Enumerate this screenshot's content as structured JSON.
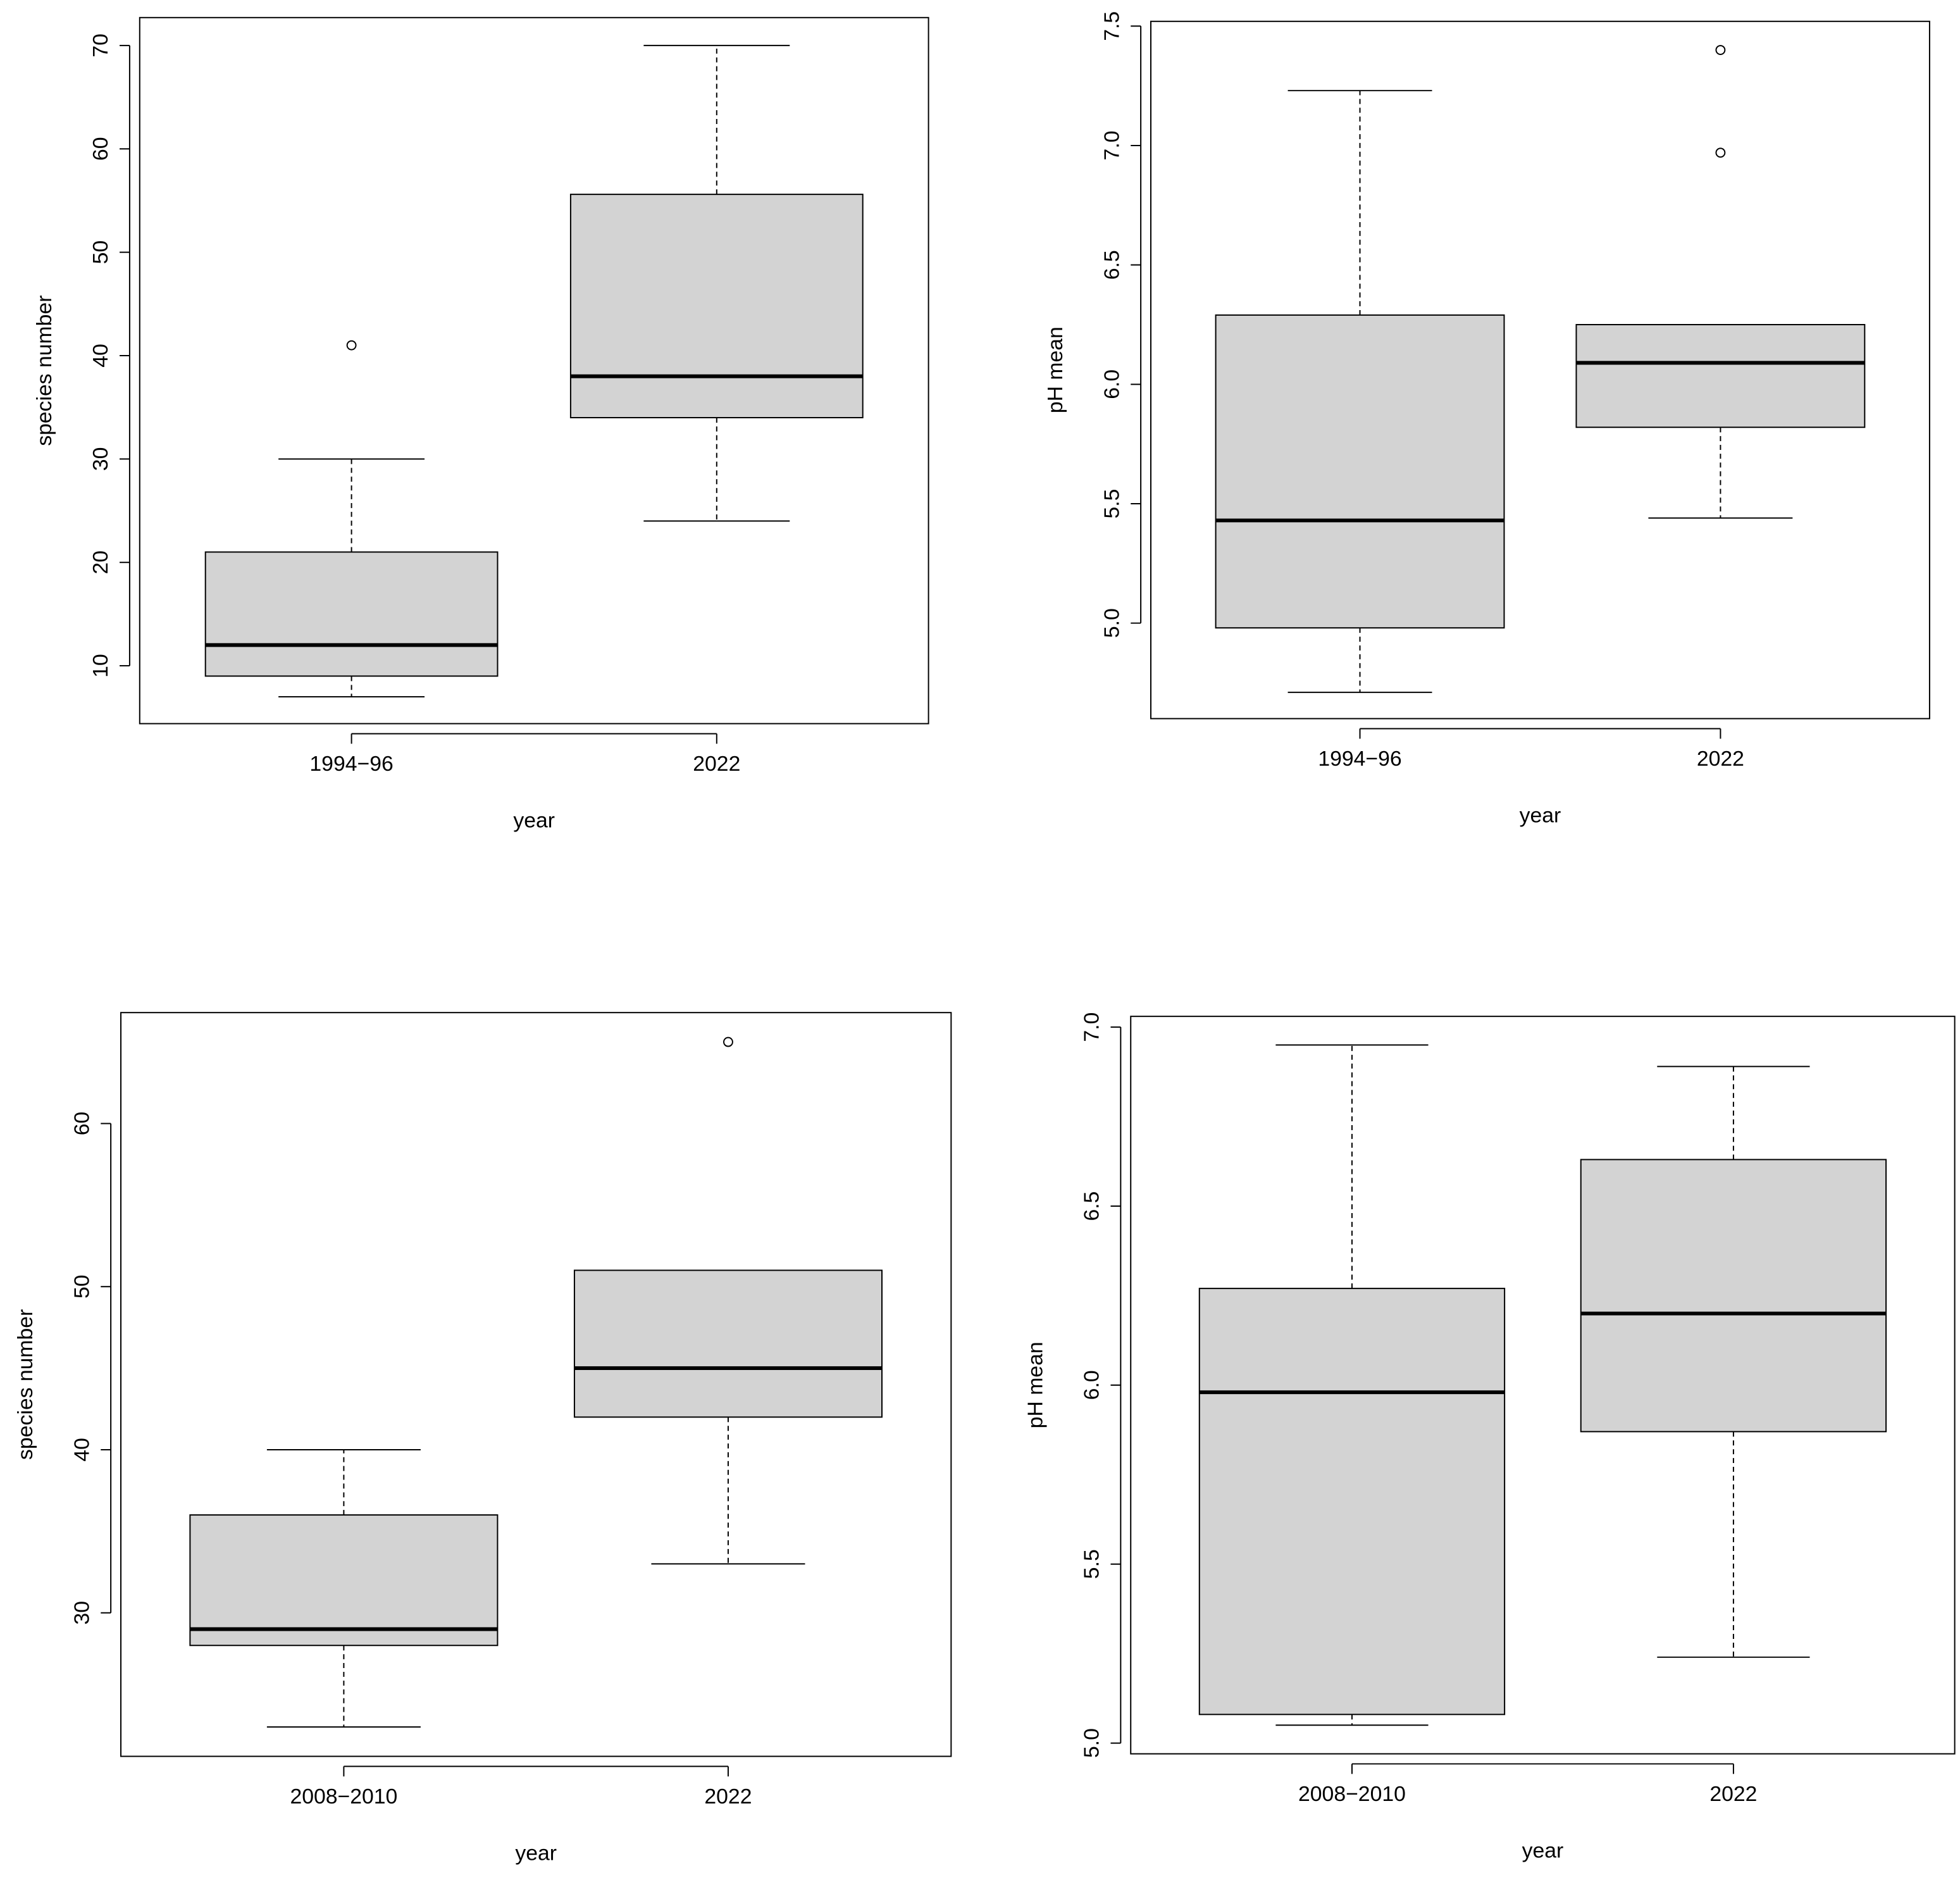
{
  "chart_data": [
    {
      "type": "box",
      "categories": [
        "1994−96",
        "2022"
      ],
      "xlabel": "year",
      "ylabel": "species number",
      "ylim": [
        4.4,
        72.7
      ],
      "yticks": [
        10,
        20,
        30,
        40,
        50,
        60,
        70
      ],
      "color": "#d3d3d3",
      "boxes": [
        {
          "whisker_low": 7,
          "q1": 9,
          "median": 12,
          "q3": 21,
          "whisker_high": 30,
          "outliers": [
            41
          ]
        },
        {
          "whisker_low": 24,
          "q1": 34,
          "median": 38,
          "q3": 55.6,
          "whisker_high": 70,
          "outliers": []
        }
      ]
    },
    {
      "type": "box",
      "categories": [
        "1994−96",
        "2022"
      ],
      "xlabel": "year",
      "ylabel": "pH mean",
      "ylim": [
        4.6,
        7.52
      ],
      "yticks": [
        {
          "value": 5,
          "label": "5.0"
        },
        {
          "value": 5.5,
          "label": "5.5"
        },
        {
          "value": 6,
          "label": "6.0"
        },
        {
          "value": 6.5,
          "label": "6.5"
        },
        {
          "value": 7,
          "label": "7.0"
        },
        {
          "value": 7.5,
          "label": "7.5"
        }
      ],
      "color": "#d3d3d3",
      "boxes": [
        {
          "whisker_low": 4.71,
          "q1": 4.98,
          "median": 5.43,
          "q3": 6.29,
          "whisker_high": 7.23,
          "outliers": []
        },
        {
          "whisker_low": 5.44,
          "q1": 5.82,
          "median": 6.09,
          "q3": 6.25,
          "whisker_high": 6.25,
          "outliers": [
            6.97,
            7.4
          ]
        }
      ]
    },
    {
      "type": "box",
      "categories": [
        "2008−2010",
        "2022"
      ],
      "xlabel": "year",
      "ylabel": "species number",
      "ylim": [
        21.2,
        66.8
      ],
      "yticks": [
        30,
        40,
        50,
        60
      ],
      "color": "#d3d3d3",
      "boxes": [
        {
          "whisker_low": 23,
          "q1": 28,
          "median": 29,
          "q3": 36,
          "whisker_high": 40,
          "outliers": []
        },
        {
          "whisker_low": 33,
          "q1": 42,
          "median": 45,
          "q3": 51,
          "whisker_high": 51,
          "outliers": [
            65
          ]
        }
      ]
    },
    {
      "type": "box",
      "categories": [
        "2008−2010",
        "2022"
      ],
      "xlabel": "year",
      "ylabel": "pH mean",
      "ylim": [
        4.97,
        7.03
      ],
      "yticks": [
        {
          "value": 5,
          "label": "5.0"
        },
        {
          "value": 5.5,
          "label": "5.5"
        },
        {
          "value": 6,
          "label": "6.0"
        },
        {
          "value": 6.5,
          "label": "6.5"
        },
        {
          "value": 7,
          "label": "7.0"
        }
      ],
      "color": "#d3d3d3",
      "boxes": [
        {
          "whisker_low": 5.05,
          "q1": 5.08,
          "median": 5.98,
          "q3": 6.27,
          "whisker_high": 6.95,
          "outliers": []
        },
        {
          "whisker_low": 5.24,
          "q1": 5.87,
          "median": 6.2,
          "q3": 6.63,
          "whisker_high": 6.89,
          "outliers": []
        }
      ]
    }
  ]
}
